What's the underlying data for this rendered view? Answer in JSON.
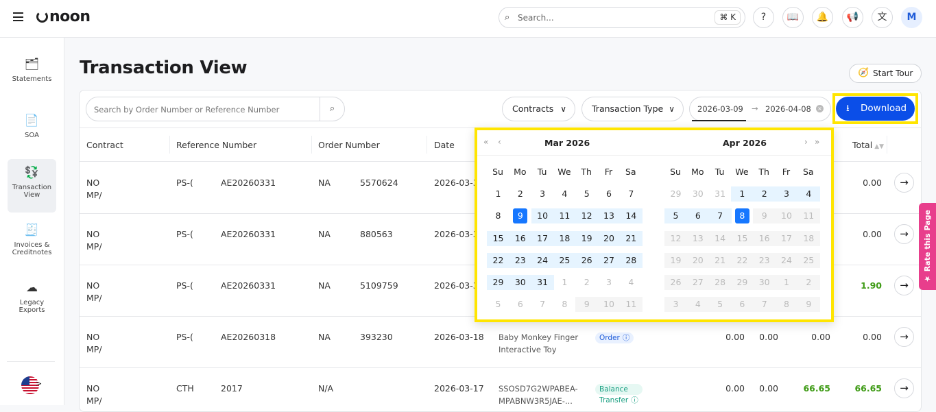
{
  "header": {
    "brand": "noon",
    "search_placeholder": "Search...",
    "shortcut": "⌘ K",
    "avatar": "M",
    "icons": [
      "help-icon",
      "book-icon",
      "bell-icon",
      "megaphone-icon",
      "translate-icon"
    ]
  },
  "sidebar": {
    "items": [
      {
        "label": "Statements",
        "icon": "statements-icon"
      },
      {
        "label": "SOA",
        "icon": "document-icon"
      },
      {
        "label": "Transaction View",
        "icon": "transaction-icon",
        "active": true
      },
      {
        "label": "Invoices & Creditnotes",
        "icon": "receipt-icon"
      },
      {
        "label": "Legacy Exports",
        "icon": "cloud-download-icon"
      }
    ]
  },
  "page": {
    "title": "Transaction View",
    "start_tour": "Start Tour"
  },
  "toolbar": {
    "search_placeholder": "Search by Order Number or Reference Number",
    "contracts": "Contracts",
    "transaction_type": "Transaction Type",
    "date_from": "2026-03-09",
    "date_to": "2026-04-08",
    "download": "Download"
  },
  "table": {
    "columns": [
      "Contract",
      "Reference Number",
      "Order Number",
      "Date",
      "Total"
    ],
    "rows": [
      {
        "contract": [
          "NO",
          "MP/"
        ],
        "ref_a": "PS-(",
        "ref_b": "AE20260331",
        "order_a": "NA",
        "order_b": "5570624",
        "date": "2026-03-3",
        "total": "0.00"
      },
      {
        "contract": [
          "NO",
          "MP/"
        ],
        "ref_a": "PS-(",
        "ref_b": "AE20260331",
        "order_a": "NA",
        "order_b": "880563",
        "date": "2026-03-3",
        "total": "0.00"
      },
      {
        "contract": [
          "NO",
          "MP/"
        ],
        "ref_a": "PS-(",
        "ref_b": "AE20260331",
        "order_a": "NA",
        "order_b": "5109759",
        "date": "2026-03-3",
        "total": "1.90"
      },
      {
        "contract": [
          "NO",
          "MP/"
        ],
        "ref_a": "PS-(",
        "ref_b": "AE20260318",
        "order_a": "NA",
        "order_b": "393230",
        "date": "2026-03-18",
        "product": [
          "Baby Monkey Finger",
          "Interactive Toy"
        ],
        "type": "Order",
        "v1": "0.00",
        "v2": "0.00",
        "v3": "0.00",
        "total": "0.00"
      },
      {
        "contract": [
          "NO",
          "MP/"
        ],
        "ref_a": "CTH",
        "ref_b": "2017",
        "order_a": "N/A",
        "order_b": "",
        "date": "2026-03-17",
        "product": [
          "SSOSD7G2WPABEA-",
          "MPABNW3R5JAE-..."
        ],
        "type": "Balance Transfer",
        "v1": "0.00",
        "v2": "0.00",
        "v3": "66.65",
        "total": "66.65"
      }
    ]
  },
  "calendar": {
    "weekdays": [
      "Su",
      "Mo",
      "Tu",
      "We",
      "Th",
      "Fr",
      "Sa"
    ],
    "months": [
      {
        "title": "Mar  2026",
        "weeks": [
          [
            [
              1,
              "n"
            ],
            [
              2,
              "n"
            ],
            [
              3,
              "n"
            ],
            [
              4,
              "n"
            ],
            [
              5,
              "n"
            ],
            [
              6,
              "n"
            ],
            [
              7,
              "n"
            ]
          ],
          [
            [
              8,
              "n"
            ],
            [
              9,
              "s"
            ],
            [
              10,
              "r"
            ],
            [
              11,
              "r"
            ],
            [
              12,
              "r"
            ],
            [
              13,
              "r"
            ],
            [
              14,
              "r"
            ]
          ],
          [
            [
              15,
              "r"
            ],
            [
              16,
              "r"
            ],
            [
              17,
              "r"
            ],
            [
              18,
              "r"
            ],
            [
              19,
              "r"
            ],
            [
              20,
              "r"
            ],
            [
              21,
              "r"
            ]
          ],
          [
            [
              22,
              "r"
            ],
            [
              23,
              "r"
            ],
            [
              24,
              "r"
            ],
            [
              25,
              "r"
            ],
            [
              26,
              "r"
            ],
            [
              27,
              "r"
            ],
            [
              28,
              "r"
            ]
          ],
          [
            [
              29,
              "r"
            ],
            [
              30,
              "r"
            ],
            [
              31,
              "r"
            ],
            [
              1,
              "o"
            ],
            [
              2,
              "o"
            ],
            [
              3,
              "o"
            ],
            [
              4,
              "o"
            ]
          ],
          [
            [
              5,
              "o"
            ],
            [
              6,
              "o"
            ],
            [
              7,
              "o"
            ],
            [
              8,
              "o"
            ],
            [
              9,
              "x"
            ],
            [
              10,
              "x"
            ],
            [
              11,
              "x"
            ]
          ]
        ]
      },
      {
        "title": "Apr  2026",
        "weeks": [
          [
            [
              29,
              "o"
            ],
            [
              30,
              "o"
            ],
            [
              31,
              "o"
            ],
            [
              1,
              "r"
            ],
            [
              2,
              "r"
            ],
            [
              3,
              "r"
            ],
            [
              4,
              "r"
            ]
          ],
          [
            [
              5,
              "r"
            ],
            [
              6,
              "r"
            ],
            [
              7,
              "r"
            ],
            [
              8,
              "s"
            ],
            [
              9,
              "x"
            ],
            [
              10,
              "x"
            ],
            [
              11,
              "x"
            ]
          ],
          [
            [
              12,
              "x"
            ],
            [
              13,
              "x"
            ],
            [
              14,
              "x"
            ],
            [
              15,
              "x"
            ],
            [
              16,
              "x"
            ],
            [
              17,
              "x"
            ],
            [
              18,
              "x"
            ]
          ],
          [
            [
              19,
              "x"
            ],
            [
              20,
              "x"
            ],
            [
              21,
              "x"
            ],
            [
              22,
              "x"
            ],
            [
              23,
              "x"
            ],
            [
              24,
              "x"
            ],
            [
              25,
              "x"
            ]
          ],
          [
            [
              26,
              "x"
            ],
            [
              27,
              "x"
            ],
            [
              28,
              "x"
            ],
            [
              29,
              "x"
            ],
            [
              30,
              "x"
            ],
            [
              1,
              "x"
            ],
            [
              2,
              "x"
            ]
          ],
          [
            [
              3,
              "x"
            ],
            [
              4,
              "x"
            ],
            [
              5,
              "x"
            ],
            [
              6,
              "x"
            ],
            [
              7,
              "x"
            ],
            [
              8,
              "x"
            ],
            [
              9,
              "x"
            ]
          ]
        ]
      }
    ]
  },
  "feedback": {
    "label": "Rate this Page"
  },
  "colors": {
    "primary": "#0b4ee8",
    "highlight": "#ffe500",
    "range": "#e6f4ff",
    "selected": "#1677ff",
    "positive": "#3f9b16",
    "feedback": "#e83e8c"
  }
}
